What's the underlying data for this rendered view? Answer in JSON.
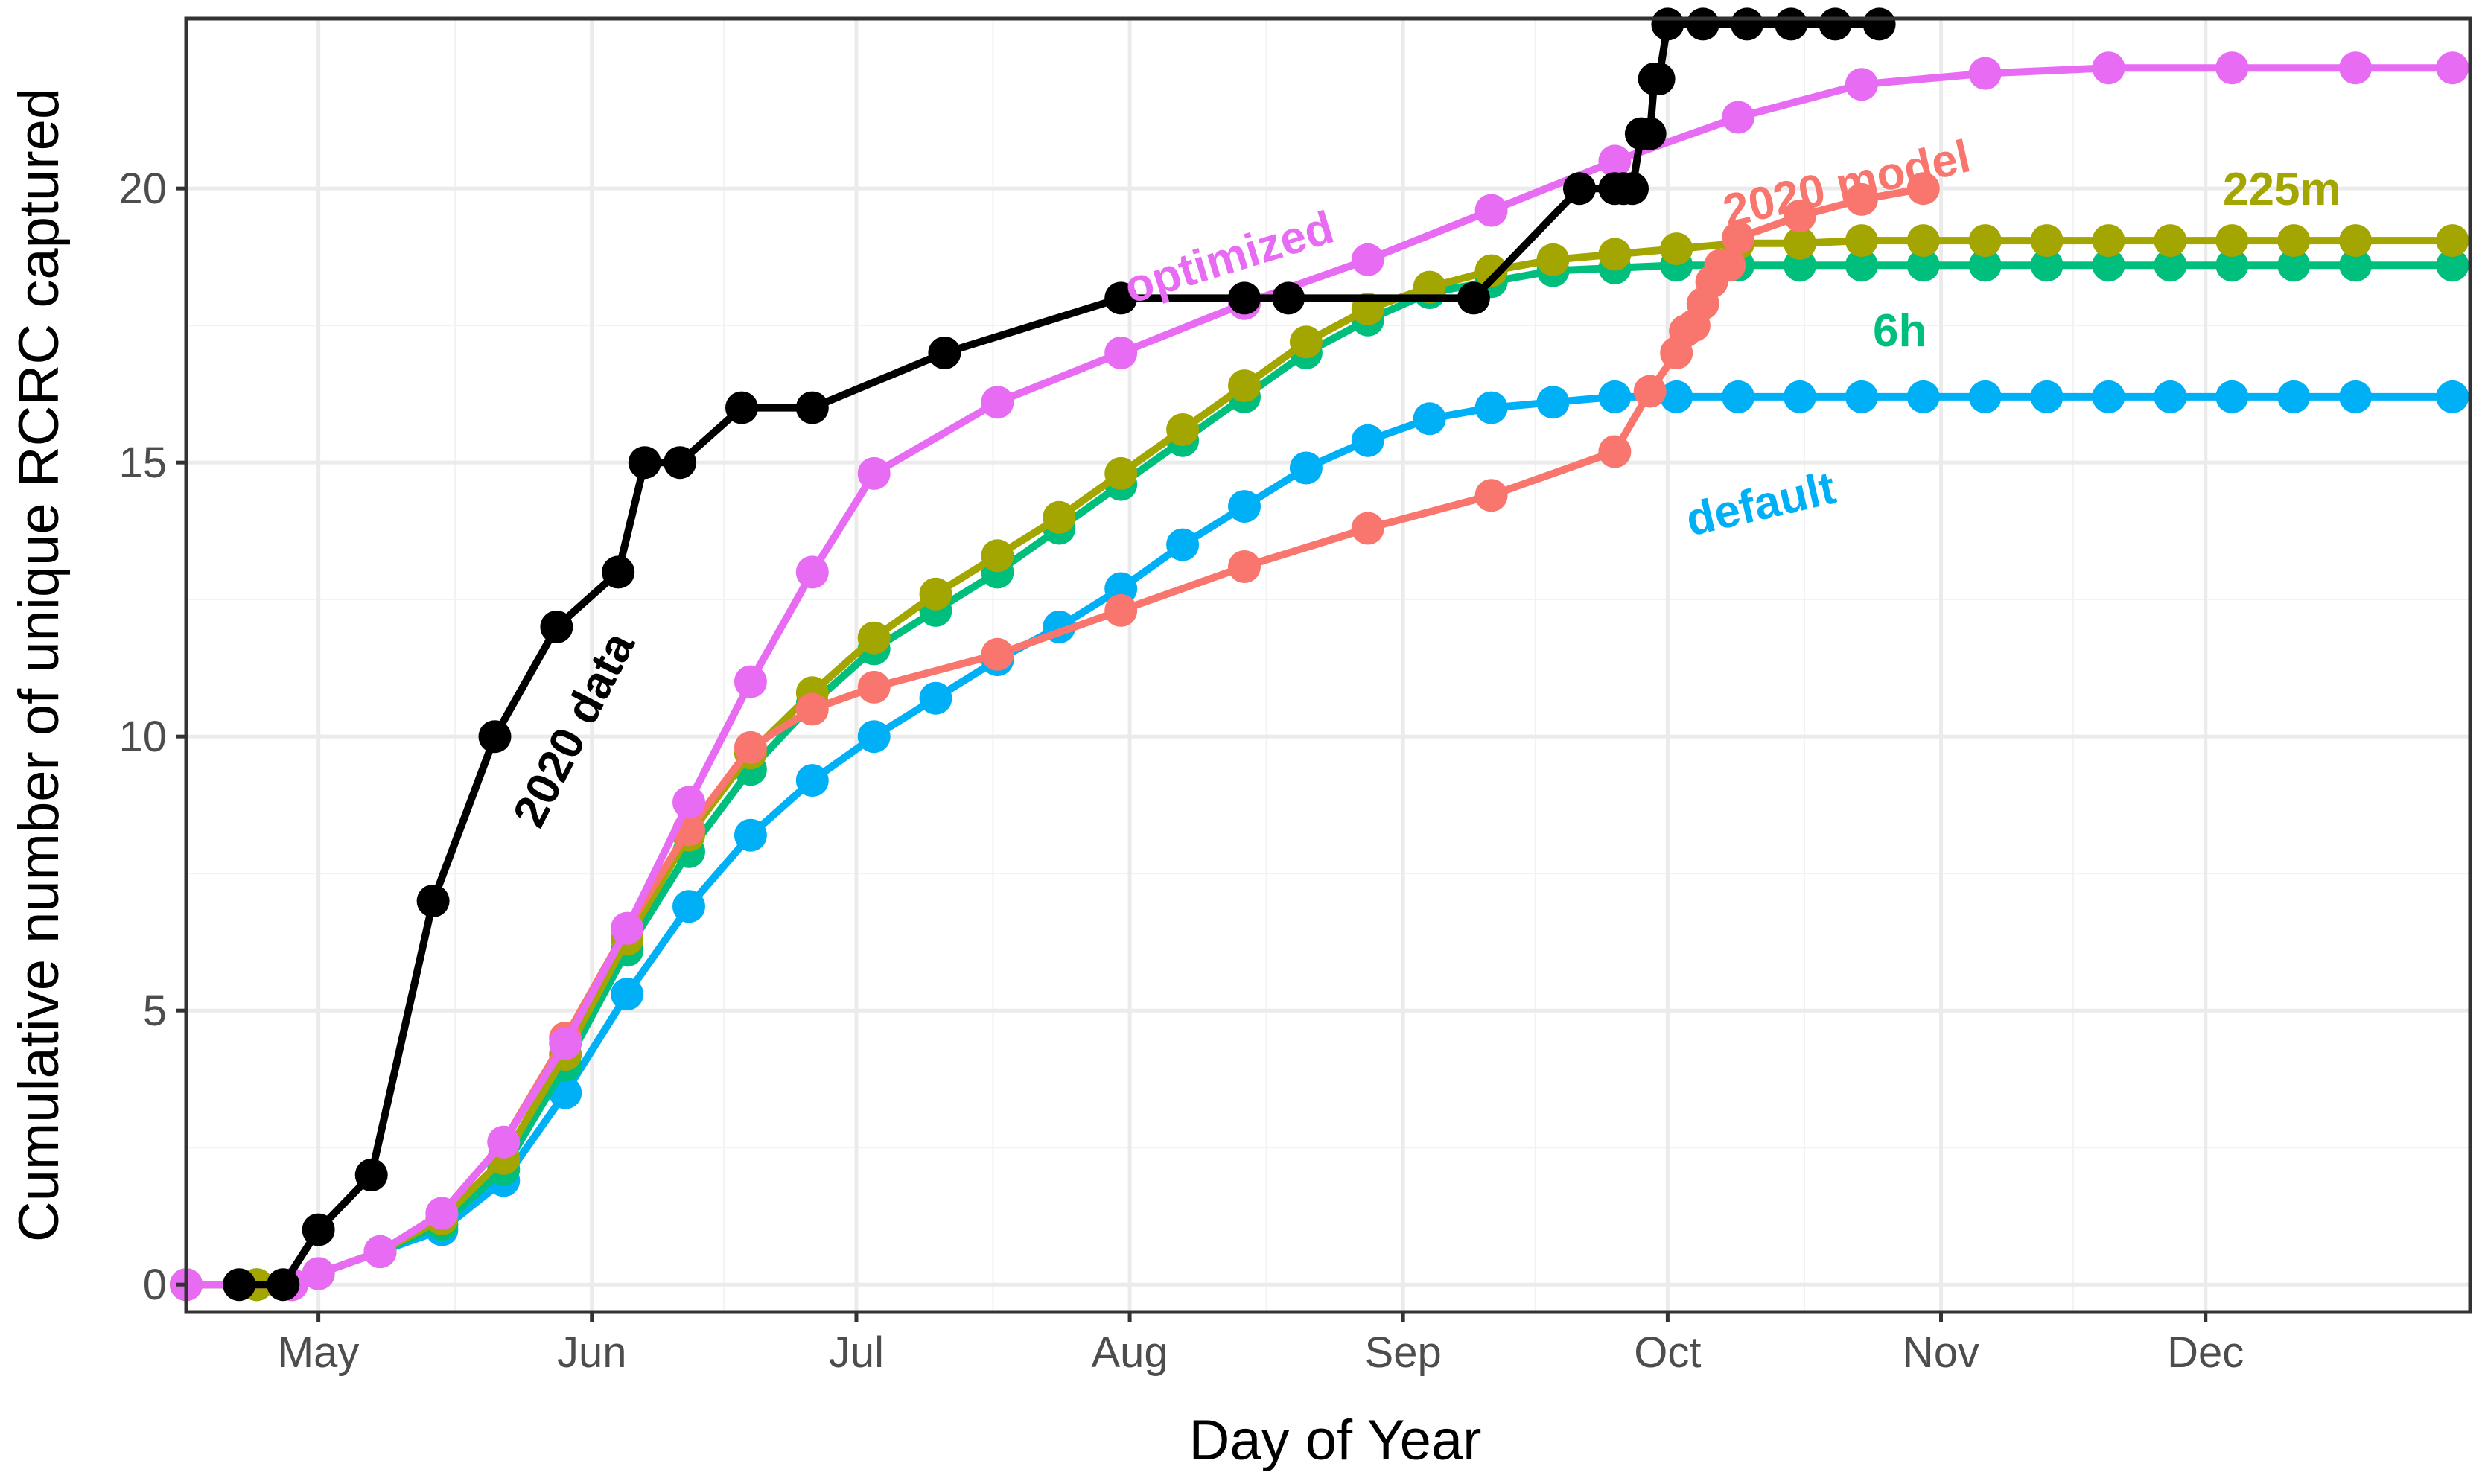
{
  "chart_data": {
    "type": "line",
    "title": "",
    "xlabel": "Day of Year",
    "ylabel": "Cumulative number of unique RCRC captured",
    "x_unit": "day of year",
    "xlim": [
      106,
      365
    ],
    "ylim": [
      -0.5,
      23.1
    ],
    "x_ticks": [
      {
        "label": "May",
        "value": 121
      },
      {
        "label": "Jun",
        "value": 152
      },
      {
        "label": "Jul",
        "value": 182
      },
      {
        "label": "Aug",
        "value": 213
      },
      {
        "label": "Sep",
        "value": 244
      },
      {
        "label": "Oct",
        "value": 274
      },
      {
        "label": "Nov",
        "value": 305
      },
      {
        "label": "Dec",
        "value": 335
      }
    ],
    "y_ticks": [
      0,
      5,
      10,
      15,
      20
    ],
    "grid": true,
    "legend": "none (series labeled inline)",
    "series": [
      {
        "name": "optimized",
        "color": "#E76BF3",
        "x": [
          106,
          118,
          121,
          128,
          135,
          142,
          149,
          156,
          163,
          170,
          177,
          184,
          198,
          212,
          226,
          240,
          254,
          268,
          282,
          296,
          310,
          324,
          338,
          352,
          363
        ],
        "y": [
          0,
          0,
          0.2,
          0.6,
          1.3,
          2.6,
          4.4,
          6.5,
          8.8,
          11.0,
          13.0,
          14.8,
          16.1,
          17.0,
          17.9,
          18.7,
          19.6,
          20.5,
          21.3,
          21.9,
          22.1,
          22.2,
          22.2,
          22.2,
          22.2
        ]
      },
      {
        "name": "2020 model",
        "color": "#F8766D",
        "x": [
          106,
          118,
          121,
          128,
          135,
          142,
          149,
          156,
          163,
          170,
          177,
          184,
          198,
          212,
          226,
          240,
          254,
          268,
          272,
          275,
          276,
          277,
          278,
          279,
          280,
          281,
          282,
          289,
          296,
          303
        ],
        "y": [
          0,
          0,
          0.2,
          0.6,
          1.3,
          2.6,
          4.5,
          6.5,
          8.3,
          9.8,
          10.5,
          10.9,
          11.5,
          12.3,
          13.1,
          13.8,
          14.4,
          15.2,
          16.3,
          17.0,
          17.4,
          17.5,
          17.9,
          18.3,
          18.6,
          18.6,
          19.1,
          19.5,
          19.8,
          20.0
        ]
      },
      {
        "name": "225m",
        "color": "#A3A500",
        "x": [
          106,
          114,
          121,
          128,
          135,
          142,
          149,
          156,
          163,
          170,
          177,
          184,
          191,
          198,
          205,
          212,
          219,
          226,
          233,
          240,
          247,
          254,
          261,
          268,
          275,
          282,
          289,
          296,
          303,
          310,
          317,
          324,
          331,
          338,
          345,
          352,
          363
        ],
        "y": [
          0,
          0,
          0.2,
          0.6,
          1.2,
          2.3,
          4.2,
          6.3,
          8.2,
          9.7,
          10.8,
          11.8,
          12.6,
          13.3,
          14.0,
          14.8,
          15.6,
          16.4,
          17.2,
          17.8,
          18.2,
          18.5,
          18.7,
          18.8,
          18.9,
          19.0,
          19.0,
          19.05,
          19.05,
          19.05,
          19.05,
          19.05,
          19.05,
          19.05,
          19.05,
          19.05,
          19.05
        ]
      },
      {
        "name": "6h",
        "color": "#00BF7D",
        "x": [
          106,
          114,
          121,
          128,
          135,
          142,
          149,
          156,
          163,
          170,
          177,
          184,
          191,
          198,
          205,
          212,
          219,
          226,
          233,
          240,
          247,
          254,
          261,
          268,
          275,
          282,
          289,
          296,
          303,
          310,
          317,
          324,
          331,
          338,
          345,
          352,
          363
        ],
        "y": [
          0,
          0,
          0.2,
          0.6,
          1.1,
          2.1,
          4.0,
          6.1,
          7.9,
          9.4,
          10.6,
          11.6,
          12.3,
          13.0,
          13.8,
          14.6,
          15.4,
          16.2,
          17.0,
          17.6,
          18.1,
          18.3,
          18.5,
          18.55,
          18.6,
          18.6,
          18.6,
          18.6,
          18.6,
          18.6,
          18.6,
          18.6,
          18.6,
          18.6,
          18.6,
          18.6,
          18.6
        ]
      },
      {
        "name": "default",
        "color": "#00B0F6",
        "x": [
          106,
          114,
          121,
          128,
          135,
          142,
          149,
          156,
          163,
          170,
          177,
          184,
          191,
          198,
          205,
          212,
          219,
          226,
          233,
          240,
          247,
          254,
          261,
          268,
          275,
          282,
          289,
          296,
          303,
          310,
          317,
          324,
          331,
          338,
          345,
          352,
          363
        ],
        "y": [
          0,
          0,
          0.2,
          0.6,
          1.0,
          1.9,
          3.5,
          5.3,
          6.9,
          8.2,
          9.2,
          10.0,
          10.7,
          11.4,
          12.0,
          12.7,
          13.5,
          14.2,
          14.9,
          15.4,
          15.8,
          16.0,
          16.1,
          16.2,
          16.2,
          16.2,
          16.2,
          16.2,
          16.2,
          16.2,
          16.2,
          16.2,
          16.2,
          16.2,
          16.2,
          16.2,
          16.2
        ]
      },
      {
        "name": "2020 data",
        "color": "#000000",
        "step_points_only": true,
        "x": [
          112,
          117,
          121,
          127,
          134,
          141,
          148,
          155,
          158,
          162,
          169,
          177,
          192,
          212,
          226,
          231,
          252,
          264,
          268,
          269,
          270,
          271,
          272,
          272.5,
          273,
          274,
          278,
          283,
          288,
          293,
          298
        ],
        "y": [
          0,
          0,
          1,
          2,
          7,
          10,
          12,
          13,
          15,
          15,
          16,
          16,
          17,
          18,
          18,
          18,
          18,
          20,
          20,
          20,
          20,
          21,
          21,
          22,
          22,
          23,
          23,
          23,
          23,
          23,
          23
        ]
      }
    ],
    "annotations": [
      {
        "text": "2020 data",
        "color": "#000000"
      },
      {
        "text": "optimized",
        "color": "#E76BF3"
      },
      {
        "text": "2020 model",
        "color": "#F8766D"
      },
      {
        "text": "225m",
        "color": "#A3A500"
      },
      {
        "text": "6h",
        "color": "#00BF7D"
      },
      {
        "text": "default",
        "color": "#00B0F6"
      }
    ]
  }
}
